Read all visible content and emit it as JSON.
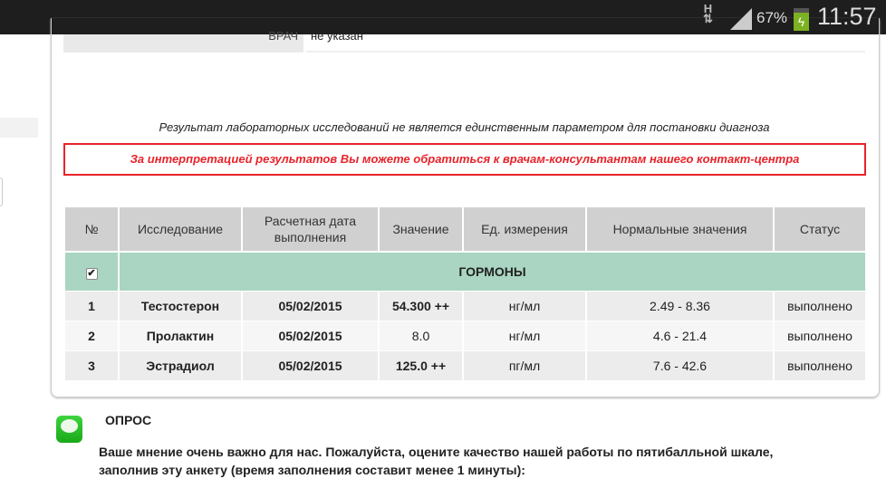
{
  "status_bar": {
    "network": "H",
    "battery": "67%",
    "time": "11:57"
  },
  "doctor": {
    "label": "ВРАЧ",
    "value": "не указан"
  },
  "notice": "Результат лабораторных исследований не является единственным параметром для постановки диагноза",
  "warning": "За интерпретацией результатов Вы можете обратиться к врачам-консультантам нашего контакт-центра",
  "table": {
    "headers": [
      "№",
      "Исследование",
      "Расчетная дата выполнения",
      "Значение",
      "Ед. измерения",
      "Нормальные значения",
      "Статус"
    ],
    "group": "ГОРМОНЫ",
    "rows": [
      {
        "n": "1",
        "test": "Тестостерон",
        "date": "05/02/2015",
        "value": "54.300 ++",
        "unit": "нг/мл",
        "norm": "2.49 - 8.36",
        "status": "выполнено"
      },
      {
        "n": "2",
        "test": "Пролактин",
        "date": "05/02/2015",
        "value": "8.0",
        "unit": "нг/мл",
        "norm": "4.6 - 21.4",
        "status": "выполнено"
      },
      {
        "n": "3",
        "test": "Эстрадиол",
        "date": "05/02/2015",
        "value": "125.0 ++",
        "unit": "пг/мл",
        "norm": "7.6 - 42.6",
        "status": "выполнено"
      }
    ]
  },
  "poll": {
    "title": "ОПРОС",
    "text": "Ваше мнение очень важно для нас. Пожалуйста, оцените качество нашей работы по пятибалльной шкале, заполнив эту анкету (время заполнения составит менее 1 минуты):"
  }
}
